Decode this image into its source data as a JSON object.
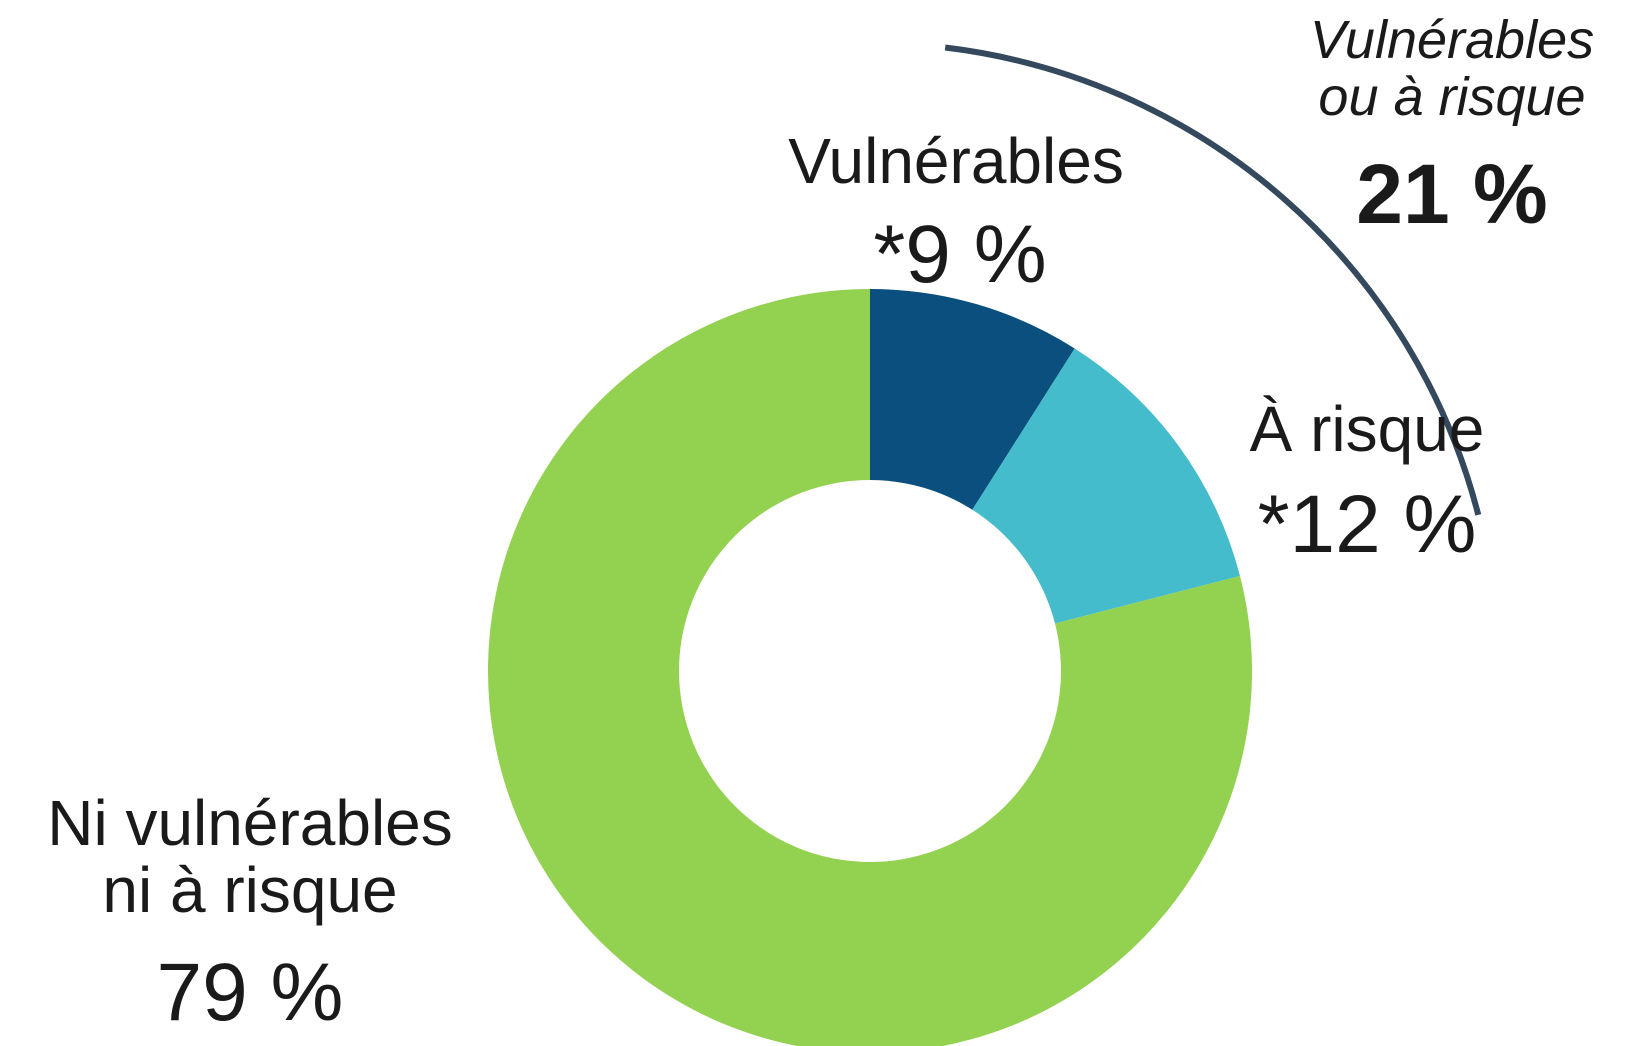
{
  "chart_data": {
    "type": "donut",
    "categories": [
      "Vulnérables",
      "À risque",
      "Ni vulnérables ni à risque"
    ],
    "values": [
      9,
      12,
      79
    ],
    "value_labels": [
      "*9 %",
      "*12 %",
      "79 %"
    ],
    "colors": [
      "#0a4f7e",
      "#44bccc",
      "#93d150"
    ],
    "annotation": {
      "text": "Vulnérables ou à risque",
      "value": 21,
      "value_label": "21 %",
      "color": "#34495e"
    }
  }
}
